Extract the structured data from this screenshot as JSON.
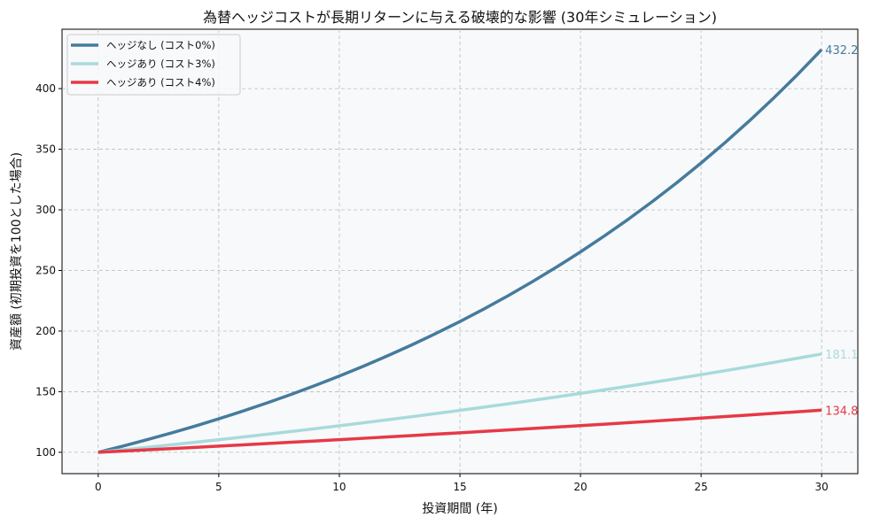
{
  "chart_data": {
    "type": "line",
    "title": "為替ヘッジコストが長期リターンに与える破壊的な影響 (30年シミュレーション)",
    "xlabel": "投資期間 (年)",
    "ylabel": "資産額 (初期投資を100とした場合)",
    "xlim": [
      -1.5,
      31.5
    ],
    "ylim": [
      82.4,
      449
    ],
    "xticks": [
      0,
      5,
      10,
      15,
      20,
      25,
      30
    ],
    "yticks": [
      100,
      150,
      200,
      250,
      300,
      350,
      400
    ],
    "grid": true,
    "legend_position": "top-left",
    "background": "#f8f9fa",
    "x": [
      0,
      1,
      2,
      3,
      4,
      5,
      6,
      7,
      8,
      9,
      10,
      11,
      12,
      13,
      14,
      15,
      16,
      17,
      18,
      19,
      20,
      21,
      22,
      23,
      24,
      25,
      26,
      27,
      28,
      29,
      30
    ],
    "series": [
      {
        "name": "ヘッジなし (コスト0%)",
        "color": "#457b9d",
        "annual_rate": 0.05,
        "end_label": "432.2"
      },
      {
        "name": "ヘッジあり (コスト3%)",
        "color": "#a8dadc",
        "annual_rate": 0.02,
        "end_label": "181.1"
      },
      {
        "name": "ヘッジあり (コスト4%)",
        "color": "#e63946",
        "annual_rate": 0.01,
        "end_label": "134.8"
      }
    ]
  }
}
